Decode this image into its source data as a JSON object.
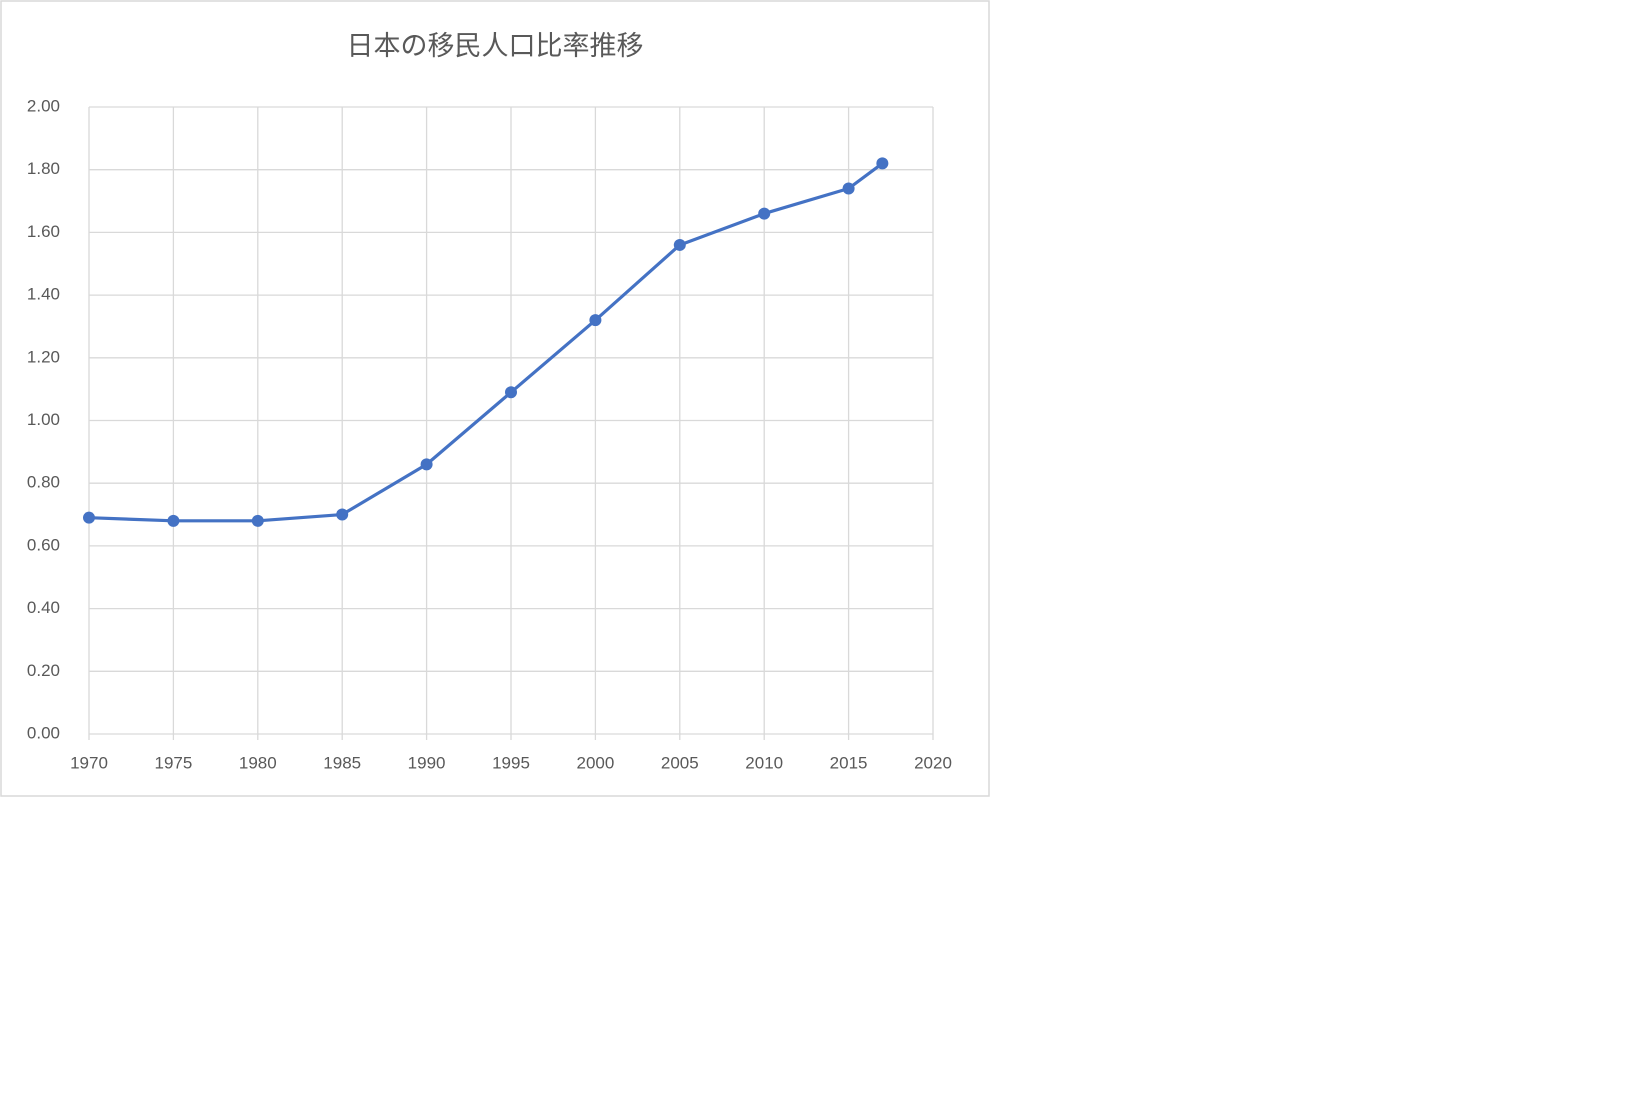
{
  "chart_data": {
    "type": "line",
    "title": "日本の移民人口比率推移",
    "x": [
      1970,
      1975,
      1980,
      1985,
      1990,
      1995,
      2000,
      2005,
      2010,
      2015,
      2017
    ],
    "values": [
      0.69,
      0.68,
      0.68,
      0.7,
      0.86,
      1.09,
      1.32,
      1.56,
      1.66,
      1.74,
      1.82
    ],
    "color": "#4472c4",
    "xlim": [
      1970,
      2020
    ],
    "xticks": [
      1970,
      1975,
      1980,
      1985,
      1990,
      1995,
      2000,
      2005,
      2010,
      2015,
      2020
    ],
    "ylim": [
      0,
      2
    ],
    "yticks": [
      {
        "value": 0,
        "label": "0.00"
      },
      {
        "value": 0.2,
        "label": "0.20"
      },
      {
        "value": 0.4,
        "label": "0.40"
      },
      {
        "value": 0.6,
        "label": "0.60"
      },
      {
        "value": 0.8,
        "label": "0.80"
      },
      {
        "value": 1,
        "label": "1.00"
      },
      {
        "value": 1.2,
        "label": "1.20"
      },
      {
        "value": 1.4,
        "label": "1.40"
      },
      {
        "value": 1.6,
        "label": "1.60"
      },
      {
        "value": 1.8,
        "label": "1.80"
      },
      {
        "value": 2,
        "label": "2.00"
      }
    ],
    "grid": true
  }
}
